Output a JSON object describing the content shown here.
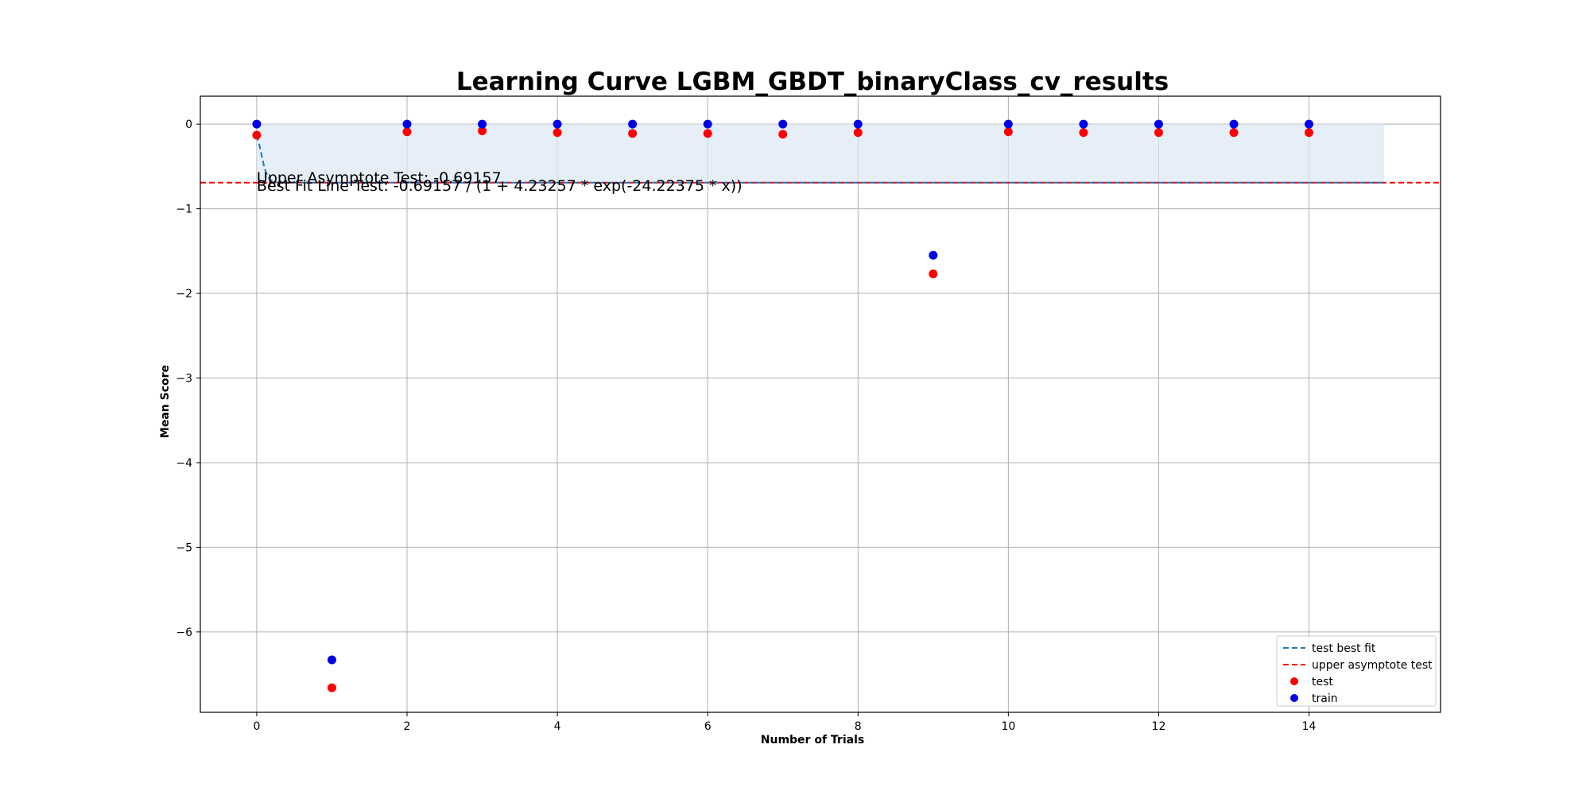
{
  "chart_data": {
    "type": "scatter",
    "title": "Learning Curve LGBM_GBDT_binaryClass_cv_results",
    "xlabel": "Number of Trials",
    "ylabel": "Mean Score",
    "xlim": [
      -0.75,
      15.75
    ],
    "ylim": [
      -6.95,
      0.33
    ],
    "xticks": [
      0,
      2,
      4,
      6,
      8,
      10,
      12,
      14
    ],
    "yticks": [
      0,
      -1,
      -2,
      -3,
      -4,
      -5,
      -6
    ],
    "xtick_labels": [
      "0",
      "2",
      "4",
      "6",
      "8",
      "10",
      "12",
      "14"
    ],
    "ytick_labels": [
      "0",
      "−1",
      "−2",
      "−3",
      "−4",
      "−5",
      "−6"
    ],
    "grid": true,
    "legend_position": "lower-right",
    "colors": {
      "test": "#ff0000",
      "train": "#0000e6",
      "best_fit": "#1f77b4",
      "asymptote": "#ff0000",
      "band": "#dce8f4"
    },
    "series": [
      {
        "name": "test",
        "x": [
          0,
          1,
          2,
          3,
          4,
          5,
          6,
          7,
          8,
          9,
          10,
          11,
          12,
          13,
          14
        ],
        "y": [
          -0.13,
          -6.66,
          -0.09,
          -0.08,
          -0.1,
          -0.11,
          -0.11,
          -0.12,
          -0.1,
          -1.77,
          -0.09,
          -0.1,
          -0.1,
          -0.1,
          -0.1
        ]
      },
      {
        "name": "train",
        "x": [
          0,
          1,
          2,
          3,
          4,
          5,
          6,
          7,
          8,
          9,
          10,
          11,
          12,
          13,
          14
        ],
        "y": [
          0.0,
          -6.33,
          0.0,
          0.0,
          0.0,
          0.0,
          0.0,
          0.0,
          0.0,
          -1.55,
          0.0,
          0.0,
          0.0,
          0.0,
          0.0
        ]
      }
    ],
    "best_fit": {
      "name": "test best fit",
      "asymptote": -0.69157,
      "b": 4.23257,
      "k": 24.22375,
      "x_range": [
        0,
        15
      ]
    },
    "asymptote_line": {
      "name": "upper asymptote test",
      "y": -0.69157
    },
    "band": {
      "x_range": [
        0,
        15
      ],
      "y_range": [
        -0.69157,
        0
      ]
    },
    "annotations": [
      "Upper Asymptote Test: -0.69157",
      "Best Fit Line Test: -0.69157 / (1 + 4.23257 * exp(-24.22375 * x))"
    ],
    "legend": [
      "test best fit",
      "upper asymptote test",
      "test",
      "train"
    ]
  }
}
